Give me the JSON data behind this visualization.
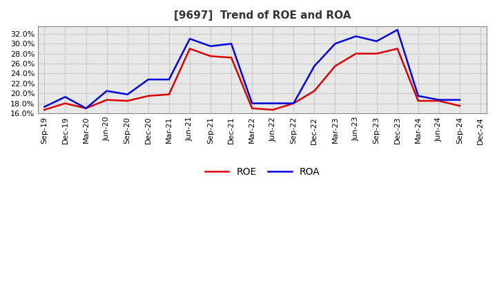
{
  "title": "[9697]  Trend of ROE and ROA",
  "labels": [
    "Sep-19",
    "Dec-19",
    "Mar-20",
    "Jun-20",
    "Sep-20",
    "Dec-20",
    "Mar-21",
    "Jun-21",
    "Sep-21",
    "Dec-21",
    "Mar-22",
    "Jun-22",
    "Sep-22",
    "Dec-22",
    "Mar-23",
    "Jun-23",
    "Sep-23",
    "Dec-23",
    "Mar-24",
    "Jun-24",
    "Sep-24",
    "Dec-24"
  ],
  "ROE": [
    16.7,
    18.0,
    17.0,
    18.7,
    18.5,
    19.5,
    19.8,
    29.0,
    27.5,
    27.2,
    17.0,
    16.7,
    18.0,
    20.5,
    25.5,
    28.0,
    28.0,
    29.0,
    18.5,
    18.5,
    17.5,
    null
  ],
  "ROA": [
    17.3,
    19.3,
    17.0,
    20.5,
    19.8,
    22.8,
    22.8,
    31.0,
    29.5,
    30.0,
    18.0,
    18.0,
    18.0,
    25.5,
    30.0,
    31.5,
    30.5,
    32.8,
    19.5,
    18.7,
    18.7,
    null
  ],
  "roe_color": "#dd0000",
  "roa_color": "#0000dd",
  "ylim": [
    16.0,
    33.5
  ],
  "yticks": [
    16.0,
    18.0,
    20.0,
    22.0,
    24.0,
    26.0,
    28.0,
    30.0,
    32.0
  ],
  "bg_color": "#ffffff",
  "plot_bg_color": "#e8e8e8",
  "grid_color": "#999999",
  "line_width": 1.8,
  "title_fontsize": 11,
  "tick_fontsize": 8,
  "legend_fontsize": 10,
  "title_color": "#333333"
}
